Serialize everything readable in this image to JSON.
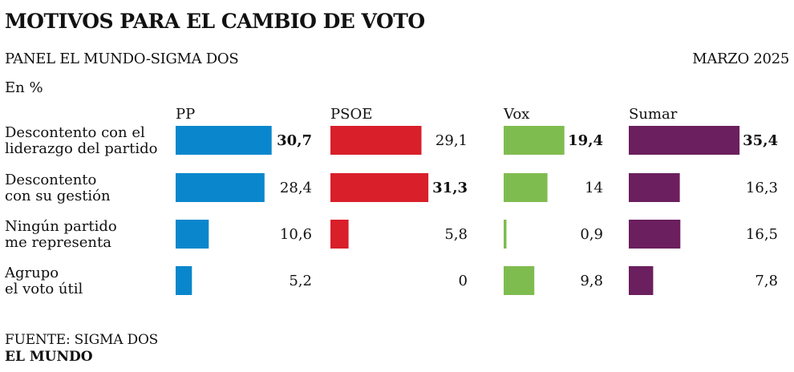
{
  "header": {
    "title": "MOTIVOS PARA EL CAMBIO DE VOTO",
    "subtitle": "PANEL EL MUNDO-SIGMA DOS",
    "date": "MARZO 2025",
    "unit": "En %"
  },
  "footer": {
    "source": "FUENTE: SIGMA DOS",
    "brand": "EL MUNDO"
  },
  "chart_data": {
    "type": "bar",
    "orientation": "horizontal",
    "title": "MOTIVOS PARA EL CAMBIO DE VOTO",
    "categories": [
      [
        "Descontento con el",
        "liderazgo del partido"
      ],
      [
        "Descontento",
        "con su gestión"
      ],
      [
        "Ningún partido",
        "me representa"
      ],
      [
        "Agrupo",
        "el voto útil"
      ]
    ],
    "series": [
      {
        "name": "PP",
        "color": "#0a87cc",
        "values": [
          30.7,
          28.4,
          10.6,
          5.2
        ],
        "labels": [
          "30,7",
          "28,4",
          "10,6",
          "5,2"
        ],
        "bold": [
          true,
          false,
          false,
          false
        ]
      },
      {
        "name": "PSOE",
        "color": "#d81f2a",
        "values": [
          29.1,
          31.3,
          5.8,
          0
        ],
        "labels": [
          "29,1",
          "31,3",
          "5,8",
          "0"
        ],
        "bold": [
          false,
          true,
          false,
          false
        ]
      },
      {
        "name": "Vox",
        "color": "#7fbc4f",
        "values": [
          19.4,
          14,
          0.9,
          9.8
        ],
        "labels": [
          "19,4",
          "14",
          "0,9",
          "9,8"
        ],
        "bold": [
          true,
          false,
          false,
          false
        ]
      },
      {
        "name": "Sumar",
        "color": "#6b1f5e",
        "values": [
          35.4,
          16.3,
          16.5,
          7.8
        ],
        "labels": [
          "35,4",
          "16,3",
          "16,5",
          "7,8"
        ],
        "bold": [
          true,
          false,
          false,
          false
        ]
      }
    ]
  }
}
